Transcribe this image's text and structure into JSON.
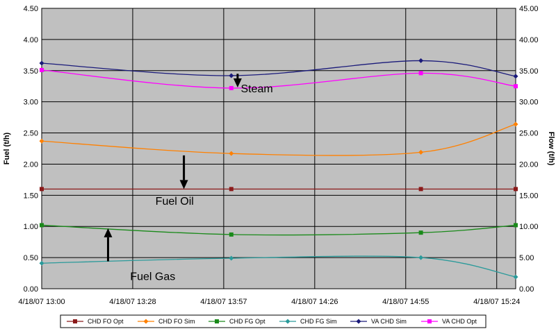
{
  "chart_data": {
    "type": "line",
    "title": "",
    "xlabel": "",
    "ylabel_left": "Fuel (t/h)",
    "ylabel_right": "Flow (t/h)",
    "x_labels": [
      "4/18/07 13:00",
      "4/18/07 13:28",
      "4/18/07 13:57",
      "4/18/07 14:26",
      "4/18/07 14:55",
      "4/18/07 15:24"
    ],
    "x_minutes": [
      0,
      28.8,
      57.6,
      86.4,
      115.2,
      144
    ],
    "xlim": [
      0,
      144
    ],
    "ylim_left": [
      0,
      4.5
    ],
    "ylim_right": [
      0,
      45
    ],
    "y_ticks_left": [
      "0.00",
      "0.50",
      "1.00",
      "1.50",
      "2.00",
      "2.50",
      "3.00",
      "3.50",
      "4.00",
      "4.50"
    ],
    "y_ticks_right": [
      "0.00",
      "5.00",
      "10.00",
      "15.00",
      "20.00",
      "25.00",
      "30.00",
      "35.00",
      "40.00",
      "45.00"
    ],
    "grid": true,
    "legend_position": "bottom",
    "series": [
      {
        "name": "CHD FO Opt",
        "axis": "left",
        "color": "#8B1A1A",
        "marker": "square",
        "x": [
          0,
          60,
          120,
          150
        ],
        "values": [
          1.6,
          1.6,
          1.6,
          1.6
        ]
      },
      {
        "name": "CHD FO Sim",
        "axis": "left",
        "color": "#FF8000",
        "marker": "diamond",
        "x": [
          0,
          60,
          120,
          150
        ],
        "values": [
          2.37,
          2.17,
          2.19,
          2.64
        ]
      },
      {
        "name": "CHD FG Opt",
        "axis": "left",
        "color": "#1A8A1A",
        "marker": "square",
        "x": [
          0,
          60,
          120,
          150
        ],
        "values": [
          1.02,
          0.87,
          0.9,
          1.02
        ]
      },
      {
        "name": "CHD FG Sim",
        "axis": "left",
        "color": "#2A9A9A",
        "marker": "diamond",
        "x": [
          0,
          60,
          120,
          150
        ],
        "values": [
          0.41,
          0.49,
          0.5,
          0.19
        ]
      },
      {
        "name": "VA CHD Sim",
        "axis": "right",
        "color": "#1A1A7A",
        "marker": "diamond",
        "x": [
          0,
          60,
          120,
          150
        ],
        "values": [
          36.2,
          34.2,
          36.6,
          34.1
        ]
      },
      {
        "name": "VA CHD Opt",
        "axis": "right",
        "color": "#FF00FF",
        "marker": "square",
        "x": [
          0,
          60,
          120,
          150
        ],
        "values": [
          35.1,
          32.2,
          34.6,
          32.5
        ]
      }
    ],
    "annotations": [
      {
        "text": "Steam",
        "x": 63,
        "y": 3.15
      },
      {
        "text": "Fuel Oil",
        "x": 36,
        "y": 1.35
      },
      {
        "text": "Fuel Gas",
        "x": 28,
        "y": 0.14
      }
    ],
    "arrows": [
      {
        "direction": "down",
        "x": 62,
        "y_from": 3.45,
        "y_to": 3.23
      },
      {
        "direction": "down",
        "x": 45,
        "y_from": 2.14,
        "y_to": 1.6
      },
      {
        "direction": "up",
        "x": 21,
        "y_from": 0.44,
        "y_to": 0.97
      }
    ]
  }
}
